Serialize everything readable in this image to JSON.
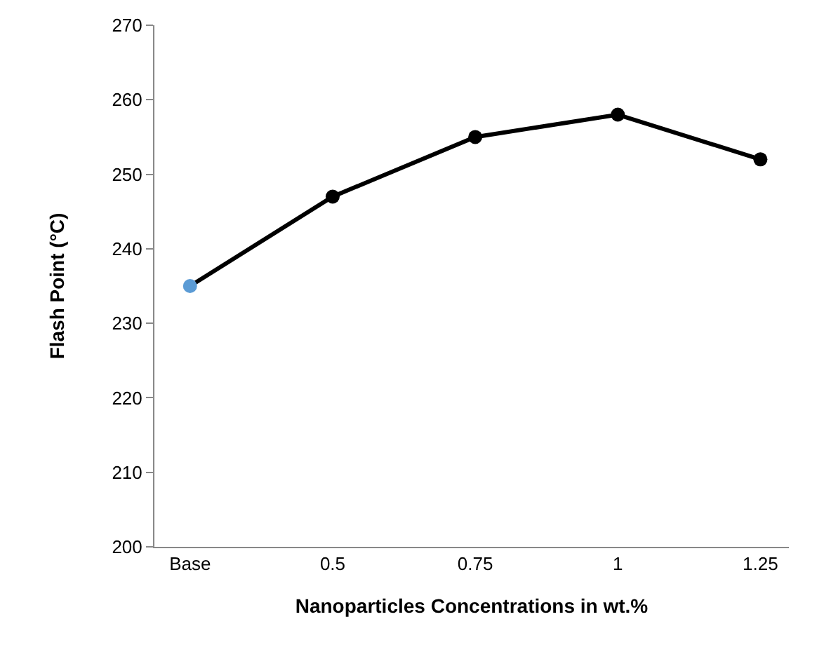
{
  "chart_data": {
    "type": "line",
    "xlabel": "Nanoparticles Concentrations in wt.%",
    "ylabel": "Flash Point (°C)",
    "categories": [
      "Base",
      "0.5",
      "0.75",
      "1",
      "1.25"
    ],
    "series": [
      {
        "color": "#000000",
        "colors": [
          "#5b9bd5",
          "#000000",
          "#000000",
          "#000000",
          "#000000"
        ],
        "values": [
          235,
          247,
          255,
          258,
          252
        ]
      }
    ],
    "ylim": [
      200,
      270
    ],
    "yticks": [
      200,
      210,
      220,
      230,
      240,
      250,
      260,
      270
    ],
    "marker": "circle",
    "line_style": "solid"
  }
}
